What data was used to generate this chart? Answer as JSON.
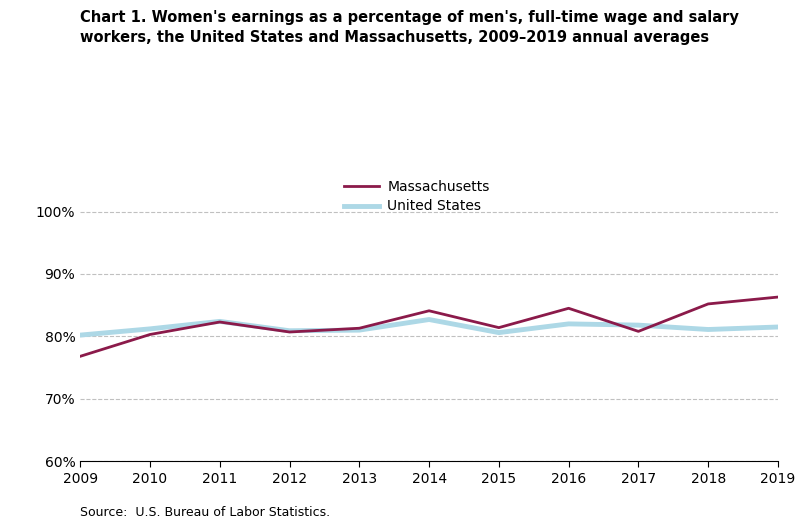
{
  "years": [
    2009,
    2010,
    2011,
    2012,
    2013,
    2014,
    2015,
    2016,
    2017,
    2018,
    2019
  ],
  "massachusetts": [
    76.8,
    80.3,
    82.3,
    80.7,
    81.3,
    84.1,
    81.4,
    84.5,
    80.8,
    85.2,
    86.3
  ],
  "united_states": [
    80.2,
    81.2,
    82.4,
    80.9,
    81.0,
    82.7,
    80.6,
    82.0,
    81.8,
    81.1,
    81.5
  ],
  "ma_color": "#8B1A4A",
  "us_color": "#ADD8E6",
  "title": "Chart 1. Women's earnings as a percentage of men's, full-time wage and salary\nworkers, the United States and Massachusetts, 2009–2019 annual averages",
  "ylim": [
    60,
    102
  ],
  "yticks": [
    60,
    70,
    80,
    90,
    100
  ],
  "ytick_labels": [
    "60%",
    "70%",
    "80%",
    "90%",
    "100%"
  ],
  "source": "Source:  U.S. Bureau of Labor Statistics.",
  "legend_ma": "Massachusetts",
  "legend_us": "United States",
  "grid_color": "#C0C0C0",
  "ma_linewidth": 2.0,
  "us_linewidth": 3.5,
  "title_fontsize": 10.5,
  "tick_fontsize": 10,
  "legend_fontsize": 10,
  "source_fontsize": 9
}
